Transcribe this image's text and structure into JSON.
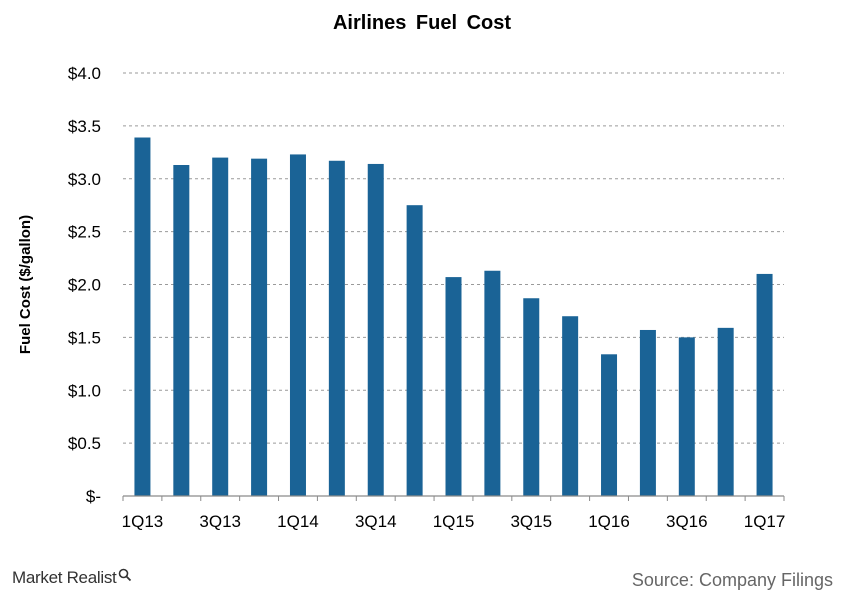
{
  "chart_data": {
    "type": "bar",
    "title": "Airlines  Fuel  Cost",
    "xlabel": "",
    "ylabel": "Fuel Cost ($/gallon)",
    "ylim": [
      0,
      4.0
    ],
    "grid": true,
    "yticks": [
      0,
      0.5,
      1.0,
      1.5,
      2.0,
      2.5,
      3.0,
      3.5,
      4.0
    ],
    "ytick_labels": [
      "$-",
      "$0.5",
      "$1.0",
      "$1.5",
      "$2.0",
      "$2.5",
      "$3.0",
      "$3.5",
      "$4.0"
    ],
    "categories": [
      "1Q13",
      "2Q13",
      "3Q13",
      "4Q13",
      "1Q14",
      "2Q14",
      "3Q14",
      "4Q14",
      "1Q15",
      "2Q15",
      "3Q15",
      "4Q15",
      "1Q16",
      "2Q16",
      "3Q16",
      "4Q16",
      "1Q17"
    ],
    "visible_xtick_labels": [
      "1Q13",
      "3Q13",
      "1Q14",
      "3Q14",
      "1Q15",
      "3Q15",
      "1Q16",
      "3Q16",
      "1Q17"
    ],
    "values": [
      3.39,
      3.13,
      3.2,
      3.19,
      3.23,
      3.17,
      3.14,
      2.75,
      2.07,
      2.13,
      1.87,
      1.7,
      1.34,
      1.57,
      1.5,
      1.59,
      2.1
    ],
    "bar_color": "#1a6396",
    "grid_color": "#9a9a9a"
  },
  "footer": {
    "logo_text": "Market Realist",
    "source_text": "Source: Company Filings"
  }
}
